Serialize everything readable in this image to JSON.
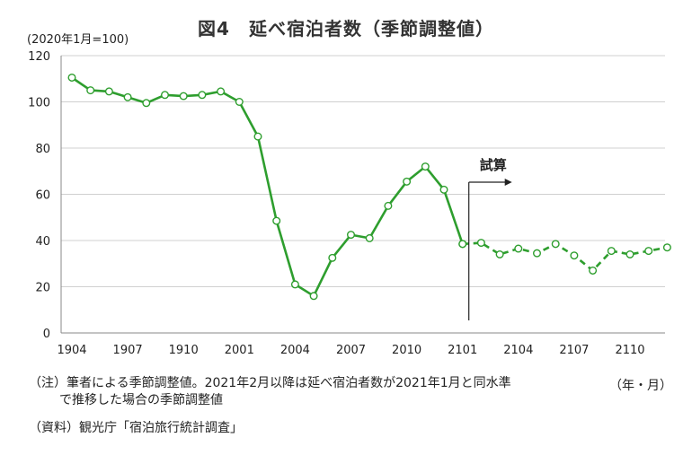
{
  "chart_data": {
    "type": "line",
    "title": "図4　延べ宿泊者数（季節調整値）",
    "ylabel": "(2020年1月=100)",
    "xlabel": "（年・月）",
    "ylim": [
      0,
      120
    ],
    "yticks": [
      0,
      20,
      40,
      60,
      80,
      100,
      120
    ],
    "xticks": [
      "1904",
      "1907",
      "1910",
      "2001",
      "2004",
      "2007",
      "2010",
      "2101",
      "2104",
      "2107",
      "2110"
    ],
    "grid": true,
    "x": [
      "1904",
      "1905",
      "1906",
      "1907",
      "1908",
      "1909",
      "1910",
      "1911",
      "1912",
      "2001",
      "2002",
      "2003",
      "2004",
      "2005",
      "2006",
      "2007",
      "2008",
      "2009",
      "2010",
      "2011",
      "2012",
      "2101",
      "2102",
      "2103",
      "2104",
      "2105",
      "2106",
      "2107",
      "2108",
      "2109",
      "2110",
      "2111",
      "2112"
    ],
    "series": [
      {
        "style": "solid",
        "color": "#2e9e2e",
        "values": [
          110.5,
          105,
          104.5,
          102,
          99.5,
          103,
          102.5,
          103,
          104.5,
          100,
          85,
          48.5,
          21,
          16,
          32.5,
          42.5,
          41,
          55,
          65.5,
          72,
          62,
          38.5,
          null,
          null,
          null,
          null,
          null,
          null,
          null,
          null,
          null,
          null,
          null
        ]
      },
      {
        "style": "dashed",
        "color": "#2e9e2e",
        "values": [
          null,
          null,
          null,
          null,
          null,
          null,
          null,
          null,
          null,
          null,
          null,
          null,
          null,
          null,
          null,
          null,
          null,
          null,
          null,
          null,
          null,
          38.5,
          39,
          34,
          36.5,
          34.5,
          38.5,
          33.5,
          27,
          35.5,
          34,
          35.5,
          37
        ]
      }
    ],
    "annotations": [
      {
        "text": "試算",
        "at": "2101"
      }
    ]
  },
  "notes": {
    "line1": "（注）筆者による季節調整値。2021年2月以降は延べ宿泊者数が2021年1月と同水準",
    "line2": "で推移した場合の季節調整値",
    "source": "（資料）観光庁「宿泊旅行統計調査」"
  }
}
